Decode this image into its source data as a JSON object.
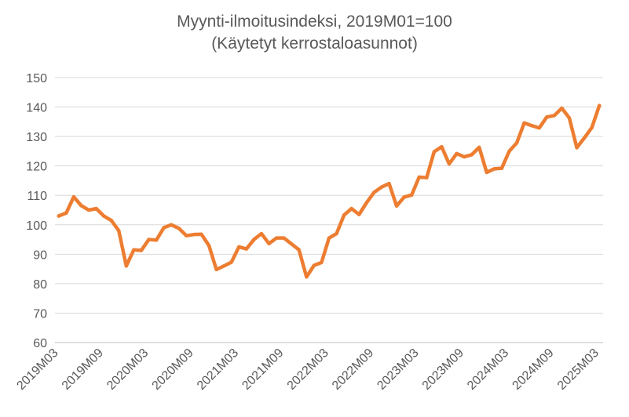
{
  "chart_data": {
    "type": "line",
    "title": "Myynti-ilmoitusindeksi, 2019M01=100",
    "subtitle": "(Käytetyt kerrostaloasunnot)",
    "xlabel": "",
    "ylabel": "",
    "ylim": [
      60,
      150
    ],
    "yticks": [
      60,
      70,
      80,
      90,
      100,
      110,
      120,
      130,
      140,
      150
    ],
    "grid": true,
    "legend": "none",
    "x": [
      "2019M03",
      "2019M04",
      "2019M05",
      "2019M06",
      "2019M07",
      "2019M08",
      "2019M09",
      "2019M10",
      "2019M11",
      "2019M12",
      "2020M01",
      "2020M02",
      "2020M03",
      "2020M04",
      "2020M05",
      "2020M06",
      "2020M07",
      "2020M08",
      "2020M09",
      "2020M10",
      "2020M11",
      "2020M12",
      "2021M01",
      "2021M02",
      "2021M03",
      "2021M04",
      "2021M05",
      "2021M06",
      "2021M07",
      "2021M08",
      "2021M09",
      "2021M10",
      "2021M11",
      "2021M12",
      "2022M01",
      "2022M02",
      "2022M03",
      "2022M04",
      "2022M05",
      "2022M06",
      "2022M07",
      "2022M08",
      "2022M09",
      "2022M10",
      "2022M11",
      "2022M12",
      "2023M01",
      "2023M02",
      "2023M03",
      "2023M04",
      "2023M05",
      "2023M06",
      "2023M07",
      "2023M08",
      "2023M09",
      "2023M10",
      "2023M11",
      "2023M12",
      "2024M01",
      "2024M02",
      "2024M03",
      "2024M04",
      "2024M05",
      "2024M06",
      "2024M07",
      "2024M08",
      "2024M09",
      "2024M10",
      "2024M11",
      "2024M12",
      "2025M01",
      "2025M02",
      "2025M03"
    ],
    "series": [
      {
        "name": "",
        "color": "#ED7D31",
        "values": [
          103.0,
          104.0,
          109.5,
          106.5,
          105.0,
          105.5,
          103.0,
          101.5,
          98.0,
          86.0,
          91.5,
          91.3,
          95.0,
          94.8,
          99.0,
          100.0,
          98.8,
          96.3,
          96.7,
          96.8,
          93.0,
          84.8,
          86.0,
          87.3,
          92.5,
          91.8,
          95.0,
          97.0,
          93.6,
          95.5,
          95.5,
          93.5,
          91.5,
          82.3,
          86.2,
          87.2,
          95.5,
          97.0,
          103.3,
          105.5,
          103.5,
          107.5,
          111.0,
          112.8,
          114.0,
          106.4,
          109.4,
          110.1,
          116.2,
          116.0,
          124.8,
          126.5,
          120.7,
          124.2,
          123.1,
          123.8,
          126.3,
          117.8,
          119.0,
          119.2,
          125.0,
          127.8,
          134.6,
          133.7,
          132.9,
          136.6,
          137.1,
          139.6,
          136.3,
          126.2,
          129.5,
          133.0,
          140.5
        ]
      }
    ],
    "xtick_labels": [
      "2019M03",
      "2019M09",
      "2020M03",
      "2020M09",
      "2021M03",
      "2021M09",
      "2022M03",
      "2022M09",
      "2023M03",
      "2023M09",
      "2024M03",
      "2024M09",
      "2025M03"
    ]
  }
}
